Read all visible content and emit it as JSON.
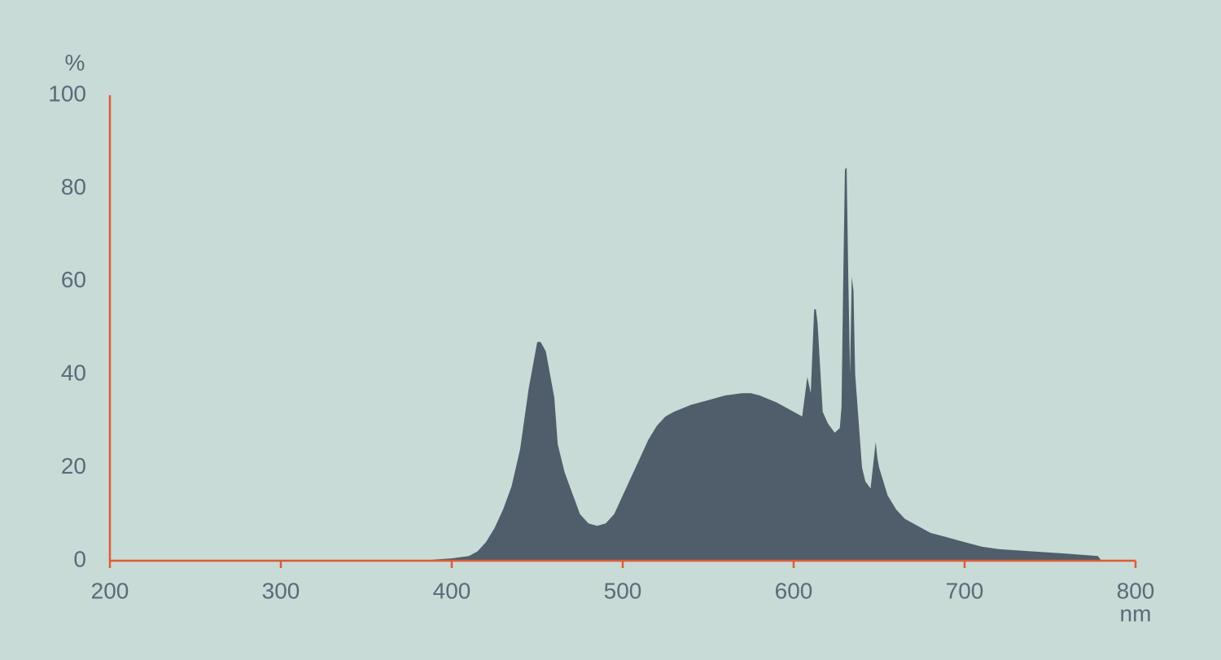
{
  "chart_data": {
    "type": "area",
    "y_label": "%",
    "x_label": "nm",
    "color": "#4f5e6a",
    "axis_color": "#e05a35",
    "xlim": [
      200,
      800
    ],
    "xticks": [
      200,
      300,
      400,
      500,
      600,
      700,
      800
    ],
    "ylim": [
      0,
      100
    ],
    "yticks": [
      0,
      20,
      40,
      60,
      80,
      100
    ],
    "x": [
      380,
      400,
      410,
      415,
      420,
      425,
      430,
      435,
      440,
      445,
      450,
      452,
      455,
      460,
      462,
      466,
      470,
      475,
      480,
      485,
      490,
      495,
      500,
      505,
      510,
      515,
      520,
      525,
      530,
      540,
      550,
      560,
      570,
      575,
      580,
      590,
      600,
      605,
      608,
      610,
      612,
      613,
      614,
      617,
      620,
      624,
      627,
      628,
      629,
      630,
      631,
      632,
      633,
      634,
      635,
      636,
      640,
      642,
      645,
      648,
      649,
      650,
      655,
      660,
      665,
      670,
      675,
      680,
      690,
      700,
      710,
      720,
      740,
      760,
      778,
      780
    ],
    "values": [
      0,
      0.5,
      1,
      2,
      4,
      7,
      11,
      16,
      24,
      37,
      47,
      47,
      45,
      35,
      25,
      19,
      15,
      10,
      8,
      7.5,
      8,
      10,
      14,
      18,
      22,
      26,
      29,
      31,
      32,
      33.5,
      34.5,
      35.5,
      36,
      36,
      35.5,
      34,
      32,
      31,
      39.5,
      36,
      54,
      54,
      51,
      32,
      29.5,
      27.5,
      28.5,
      33,
      60,
      84,
      84.5,
      60,
      40,
      61,
      58,
      40,
      20,
      17,
      15.5,
      25.5,
      22,
      20,
      14,
      11,
      9,
      8,
      7,
      6,
      5,
      4,
      3,
      2.5,
      2,
      1.5,
      1,
      0
    ]
  }
}
